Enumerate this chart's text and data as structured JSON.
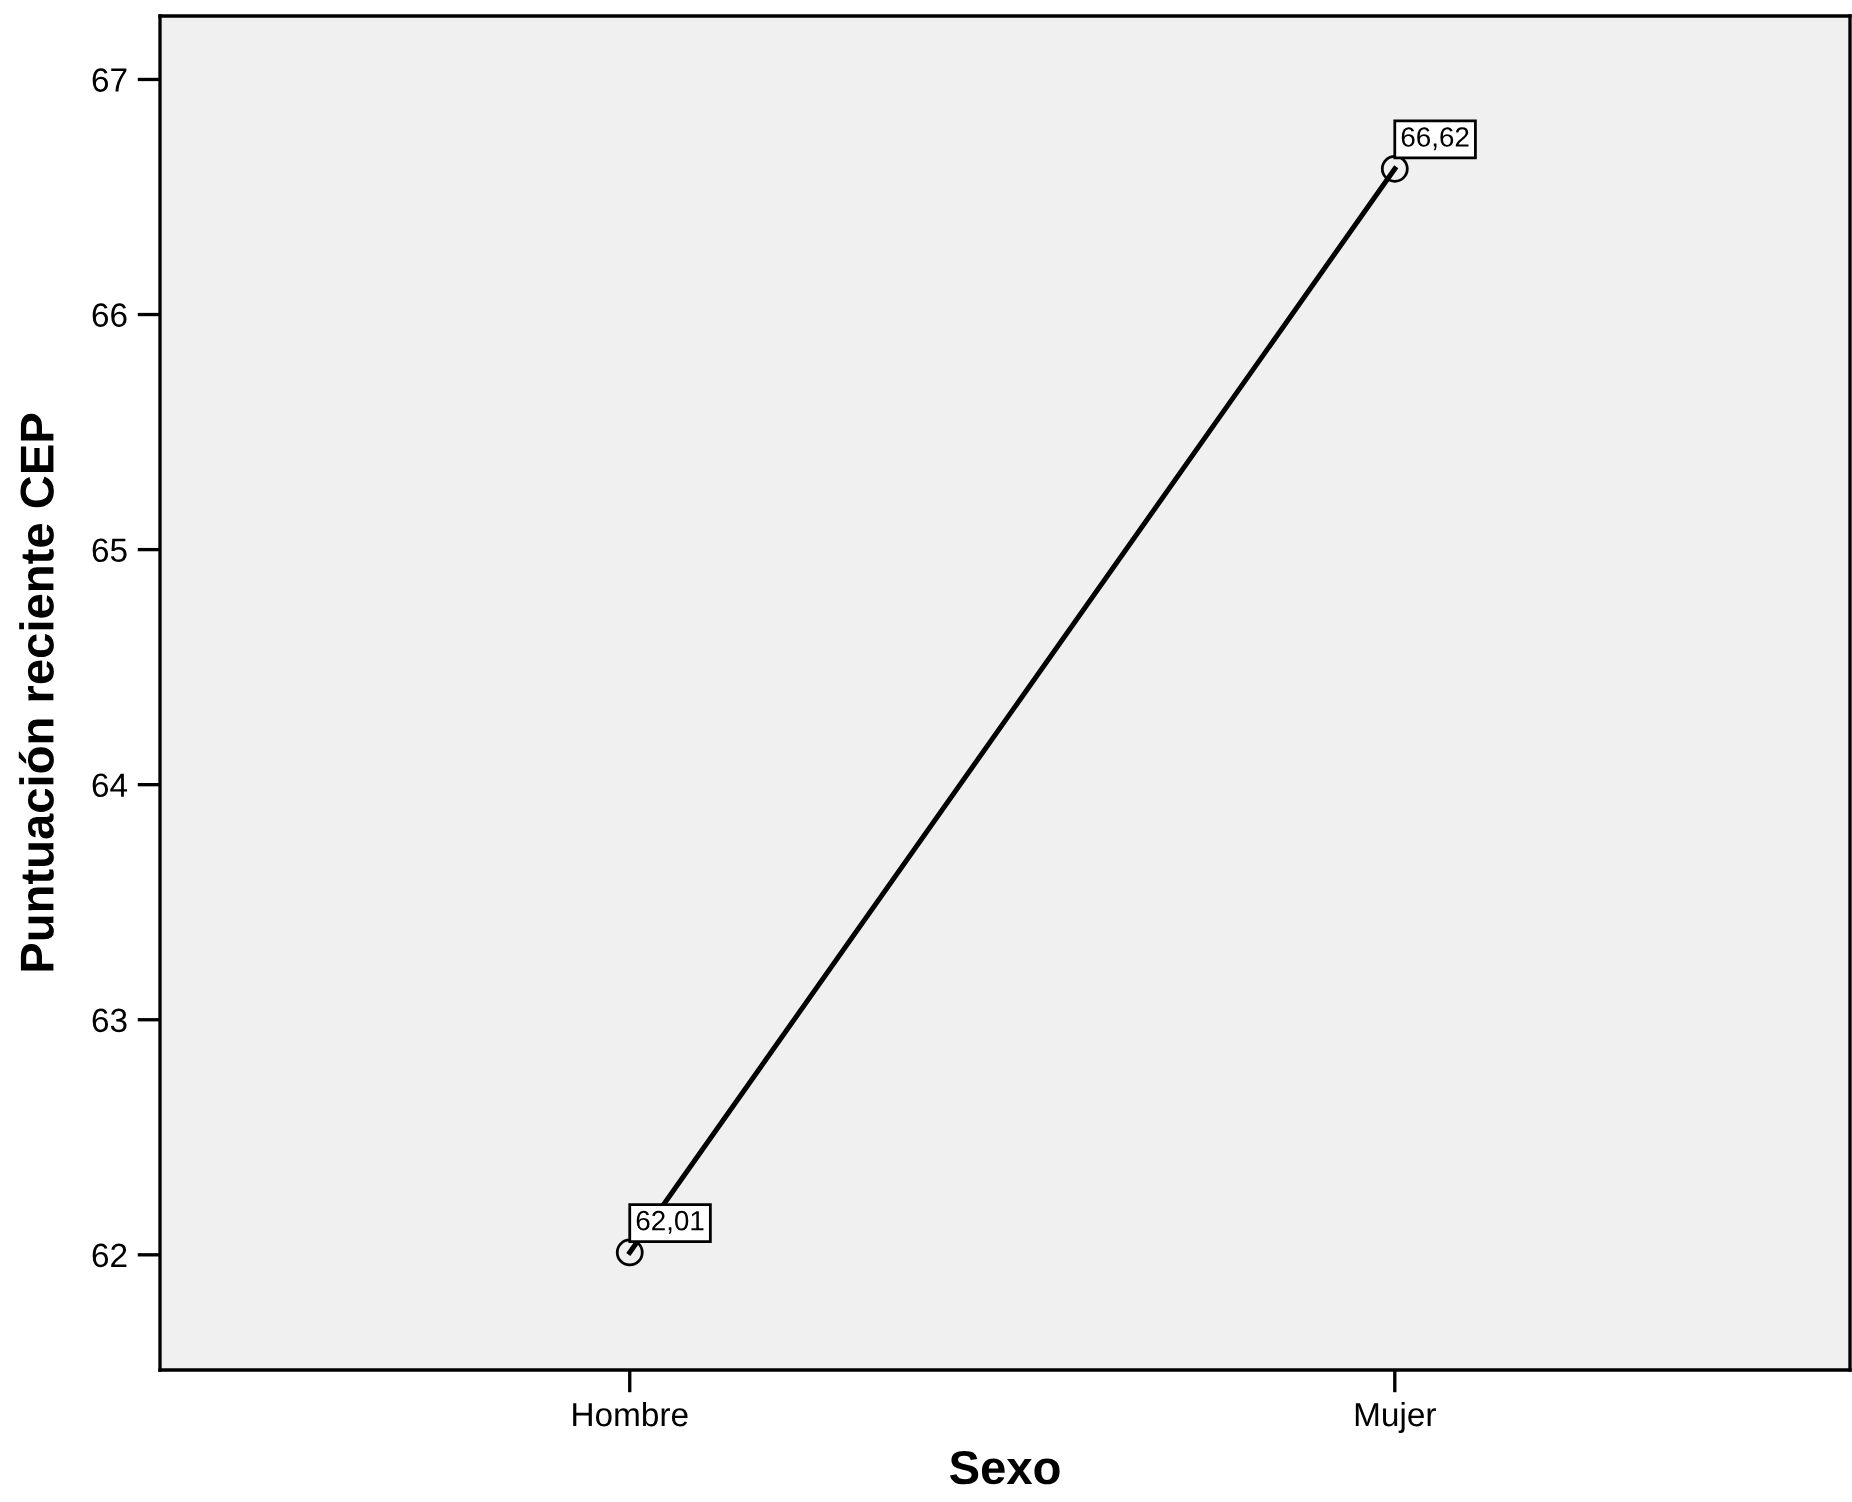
{
  "chart_data": {
    "type": "line",
    "xlabel": "Sexo",
    "ylabel": "Puntuación reciente CEP",
    "categories": [
      "Hombre",
      "Mujer"
    ],
    "series": [
      {
        "color": "#000000",
        "values": [
          62.01,
          66.62
        ],
        "value_labels": [
          "62,01",
          "66,62"
        ]
      }
    ],
    "ylim": [
      61.51,
      67.27
    ],
    "yticks": [
      62,
      63,
      64,
      65,
      66,
      67
    ],
    "marker": "circle",
    "line_style": "solid",
    "grid": false,
    "legend": false
  }
}
